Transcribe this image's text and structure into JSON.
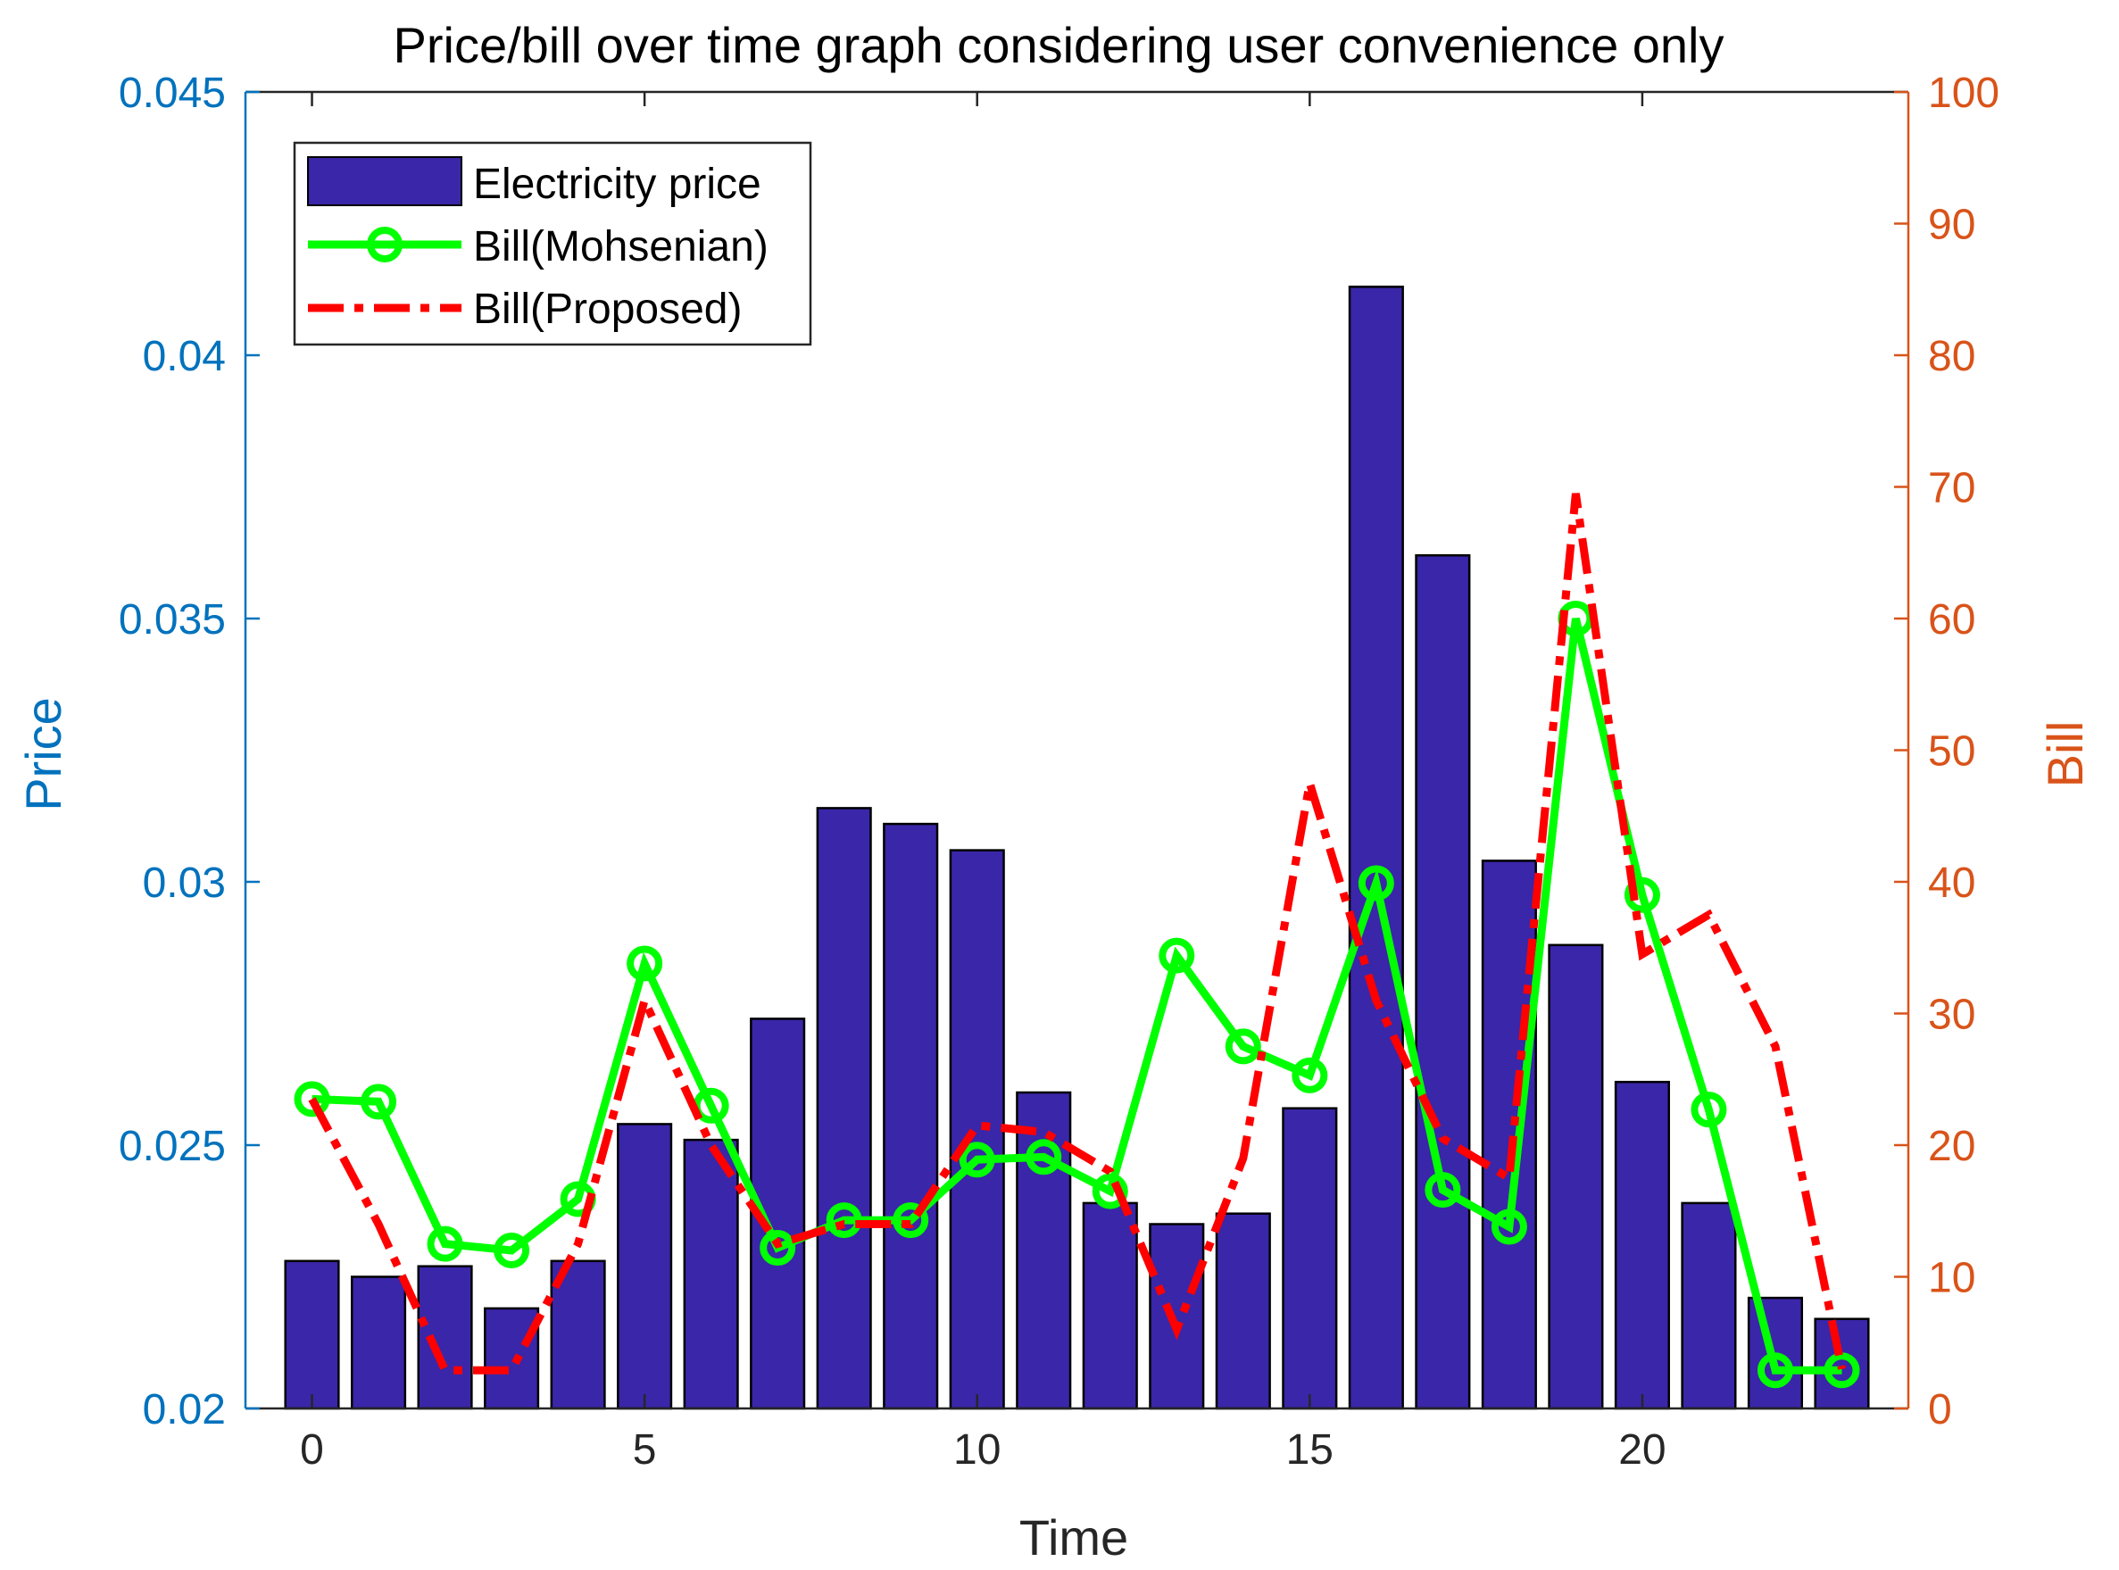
{
  "chart_data": {
    "type": "bar+line",
    "title": "Price/bill over time graph considering user convenience only",
    "xlabel": "Time",
    "ylabel_left": "Price",
    "ylabel_right": "Bill",
    "xlim": [
      -1,
      24
    ],
    "ylim_left": [
      0.02,
      0.045
    ],
    "ylim_right": [
      0,
      100
    ],
    "x_ticks": [
      "0",
      "5",
      "10",
      "15",
      "20"
    ],
    "x_tick_values": [
      0,
      5,
      10,
      15,
      20
    ],
    "y_left_ticks": [
      "0.02",
      "0.025",
      "0.03",
      "0.035",
      "0.04",
      "0.045"
    ],
    "y_left_tick_values": [
      0.02,
      0.025,
      0.03,
      0.035,
      0.04,
      0.045
    ],
    "y_right_ticks": [
      "0",
      "10",
      "20",
      "30",
      "40",
      "50",
      "60",
      "70",
      "80",
      "90",
      "100"
    ],
    "y_right_tick_values": [
      0,
      10,
      20,
      30,
      40,
      50,
      60,
      70,
      80,
      90,
      100
    ],
    "x": [
      0,
      1,
      2,
      3,
      4,
      5,
      6,
      7,
      8,
      9,
      10,
      11,
      12,
      13,
      14,
      15,
      16,
      17,
      18,
      19,
      20,
      21,
      22,
      23
    ],
    "legend_position": "top-left",
    "colors": {
      "left_axis": "#0072BD",
      "right_axis": "#D95319",
      "bar_fill": "#3A26A8",
      "bar_edge": "#000000",
      "mohsenian": "#00FF00",
      "proposed": "#FF0000",
      "frame": "#262626"
    },
    "series": [
      {
        "name": "Electricity price",
        "type": "bar",
        "axis": "left",
        "values": [
          0.0228,
          0.0225,
          0.0227,
          0.0219,
          0.0228,
          0.0254,
          0.0251,
          0.0274,
          0.0314,
          0.0311,
          0.0306,
          0.026,
          0.0239,
          0.0235,
          0.0237,
          0.0257,
          0.0413,
          0.0362,
          0.0304,
          0.0288,
          0.0262,
          0.0239,
          0.0221,
          0.0217
        ]
      },
      {
        "name": "Bill(Mohsenian)",
        "type": "line",
        "axis": "right",
        "marker": "circle",
        "values": [
          23.5,
          23.3,
          12.5,
          12.0,
          15.9,
          33.8,
          23.0,
          12.2,
          14.3,
          14.3,
          18.9,
          19.1,
          16.5,
          34.4,
          27.5,
          25.3,
          39.9,
          16.6,
          13.8,
          60.0,
          39.0,
          22.7,
          2.9,
          2.9
        ]
      },
      {
        "name": "Bill(Proposed)",
        "type": "line",
        "axis": "right",
        "style": "dash-dot",
        "values": [
          23.5,
          14.0,
          2.9,
          2.9,
          12.5,
          31.0,
          20.0,
          12.5,
          14.0,
          14.0,
          21.5,
          21.0,
          18.0,
          6.0,
          19.0,
          47.5,
          31.0,
          20.5,
          17.5,
          69.5,
          34.5,
          37.5,
          27.5,
          3.0
        ]
      }
    ]
  }
}
